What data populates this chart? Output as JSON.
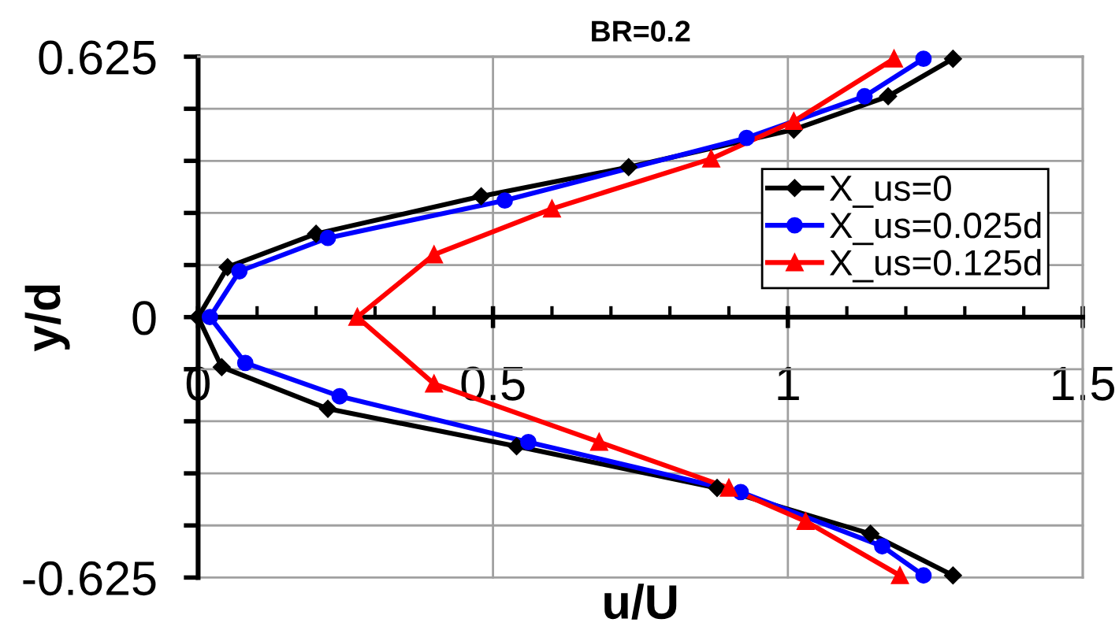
{
  "chart_data": {
    "type": "line",
    "title": "BR=0.2",
    "xlabel": "u/U",
    "ylabel": "y/d",
    "xlim": [
      0,
      1.5
    ],
    "xticks": [
      0,
      0.5,
      1,
      1.5
    ],
    "ylim": [
      -0.625,
      0.625
    ],
    "yticks": [
      -0.625,
      {
        "value": -0.5,
        "label": null
      },
      {
        "value": -0.375,
        "label": null
      },
      {
        "value": -0.25,
        "label": null
      },
      {
        "value": -0.125,
        "label": null
      },
      0,
      {
        "value": 0.125,
        "label": null
      },
      {
        "value": 0.25,
        "label": null
      },
      {
        "value": 0.375,
        "label": null
      },
      {
        "value": 0.5,
        "label": null
      },
      0.625
    ],
    "grid": true,
    "legend": "right",
    "line_style": "solid",
    "series": [
      {
        "name": "X_us=0",
        "color": "#000000",
        "marker": "diamond",
        "x": [
          1.28,
          1.17,
          1.01,
          0.73,
          0.48,
          0.2,
          0.05,
          0,
          0.04,
          0.22,
          0.54,
          0.88,
          1.14,
          1.28
        ],
        "values": [
          0.62,
          0.53,
          0.45,
          0.36,
          0.29,
          0.2,
          0.12,
          0,
          -0.12,
          -0.22,
          -0.31,
          -0.41,
          -0.52,
          -0.62
        ]
      },
      {
        "name": "X_us=0.025d",
        "color": "#0000ff",
        "marker": "circle",
        "x": [
          1.23,
          1.13,
          0.93,
          0.52,
          0.22,
          0.07,
          0.02,
          0.08,
          0.24,
          0.56,
          0.92,
          1.16,
          1.23
        ],
        "values": [
          0.62,
          0.53,
          0.43,
          0.28,
          0.19,
          0.11,
          0,
          -0.11,
          -0.19,
          -0.3,
          -0.42,
          -0.55,
          -0.62
        ]
      },
      {
        "name": "X_us=0.125d",
        "color": "#ff0000",
        "marker": "triangle",
        "x": [
          1.18,
          1.01,
          0.87,
          0.6,
          0.4,
          0.27,
          0.4,
          0.68,
          0.9,
          1.03,
          1.19
        ],
        "values": [
          0.62,
          0.47,
          0.38,
          0.26,
          0.15,
          0,
          -0.16,
          -0.3,
          -0.41,
          -0.49,
          -0.62
        ]
      }
    ]
  }
}
